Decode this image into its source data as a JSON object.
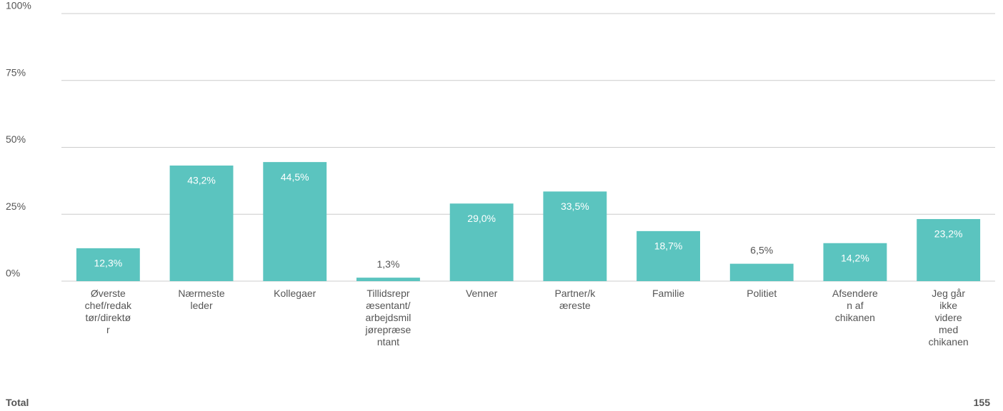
{
  "chart_data": {
    "type": "bar",
    "categories": [
      "Øverste chef/redaktør/direktør",
      "Nærmeste leder",
      "Kollegaer",
      "Tillidsrepræsentant/arbejdsmiljørepræsentant",
      "Venner",
      "Partner/kæreste",
      "Familie",
      "Politiet",
      "Afsenderen af chikanen",
      "Jeg går ikke videre med chikanen"
    ],
    "values": [
      12.3,
      43.2,
      44.5,
      1.3,
      29.0,
      33.5,
      18.7,
      6.5,
      14.2,
      23.2
    ],
    "value_labels": [
      "12,3%",
      "43,2%",
      "44,5%",
      "1,3%",
      "29,0%",
      "33,5%",
      "18,7%",
      "6,5%",
      "14,2%",
      "23,2%"
    ],
    "color": "#5bc4bf",
    "ylim": [
      0,
      100
    ],
    "yticks": [
      {
        "value": 0,
        "label": "0%"
      },
      {
        "value": 25,
        "label": "25%"
      },
      {
        "value": 50,
        "label": "50%"
      },
      {
        "value": 75,
        "label": "75%"
      },
      {
        "value": 100,
        "label": "100%"
      }
    ],
    "grid": true
  },
  "footer": {
    "label": "Total",
    "value": "155"
  }
}
